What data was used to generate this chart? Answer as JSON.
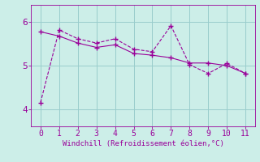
{
  "xlabel": "Windchill (Refroidissement éolien,°C)",
  "ylabel": "",
  "background_color": "#cceee8",
  "line_color": "#990099",
  "xlim": [
    -0.5,
    11.5
  ],
  "ylim": [
    3.6,
    6.4
  ],
  "xticks": [
    0,
    1,
    2,
    3,
    4,
    5,
    6,
    7,
    8,
    9,
    10,
    11
  ],
  "yticks": [
    4,
    5,
    6
  ],
  "data_x": [
    0,
    1,
    2,
    3,
    4,
    5,
    6,
    7,
    8,
    9,
    10,
    11
  ],
  "data_y": [
    4.15,
    5.82,
    5.62,
    5.52,
    5.62,
    5.38,
    5.32,
    5.92,
    5.02,
    4.82,
    5.05,
    4.82
  ],
  "trend_x": [
    0,
    1,
    2,
    3,
    4,
    5,
    6,
    7,
    8,
    9,
    10,
    11
  ],
  "trend_y": [
    5.78,
    5.68,
    5.52,
    5.42,
    5.48,
    5.28,
    5.24,
    5.18,
    5.06,
    5.06,
    5.0,
    4.82
  ],
  "grid_color": "#99cccc",
  "tick_color": "#990099",
  "tick_label_color": "#990099",
  "font_family": "monospace"
}
